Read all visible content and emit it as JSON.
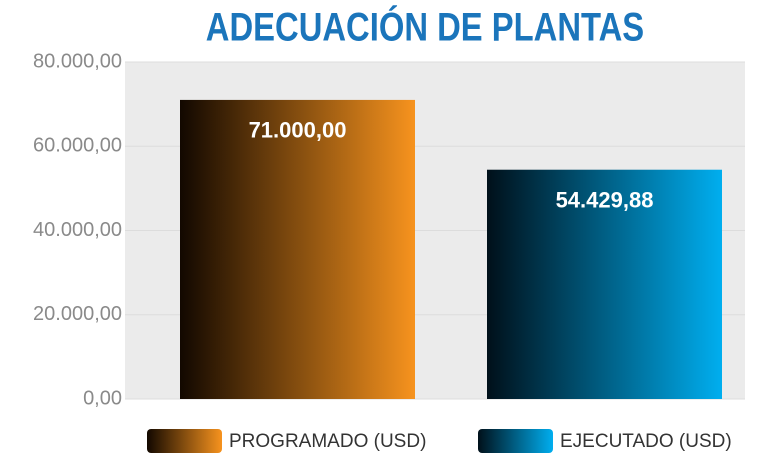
{
  "chart_data": {
    "type": "bar",
    "title": "ADECUACIÓN DE PLANTAS",
    "categories": [
      null
    ],
    "series": [
      {
        "name": "PROGRAMADO (USD)",
        "color": "#f7931e",
        "values": [
          71000
        ],
        "value_labels": [
          "71.000,00"
        ]
      },
      {
        "name": "EJECUTADO (USD)",
        "color": "#00aeef",
        "values": [
          54429.88
        ],
        "value_labels": [
          "54.429,88"
        ]
      }
    ],
    "ylim": [
      0,
      80000
    ],
    "yticks": [
      {
        "value": 0,
        "label": "0,00"
      },
      {
        "value": 20000,
        "label": "20.000,00"
      },
      {
        "value": 40000,
        "label": "40.000,00"
      },
      {
        "value": 60000,
        "label": "60.000,00"
      },
      {
        "value": 80000,
        "label": "80.000,00"
      }
    ],
    "grid": true
  }
}
